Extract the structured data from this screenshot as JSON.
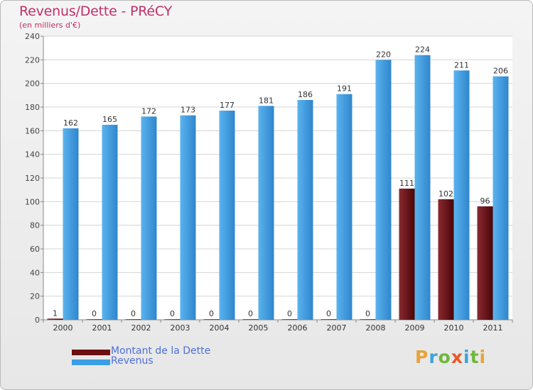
{
  "chart_data": {
    "type": "bar",
    "title": "Revenus/Dette - PRéCY",
    "subtitle": "(en milliers d'€)",
    "categories": [
      "2000",
      "2001",
      "2002",
      "2003",
      "2004",
      "2005",
      "2006",
      "2007",
      "2008",
      "2009",
      "2010",
      "2011"
    ],
    "series": [
      {
        "name": "Montant de la Dette",
        "color": "#6b0f12",
        "values": [
          1,
          0,
          0,
          0,
          0,
          0,
          0,
          0,
          0,
          111,
          102,
          96
        ]
      },
      {
        "name": "Revenus",
        "color": "#3a9ee6",
        "values": [
          162,
          165,
          172,
          173,
          177,
          181,
          186,
          191,
          220,
          224,
          211,
          206
        ]
      }
    ],
    "ylim": [
      0,
      240
    ],
    "yticks": [
      0,
      20,
      40,
      60,
      80,
      100,
      120,
      140,
      160,
      180,
      200,
      220,
      240
    ],
    "xlabel": "",
    "ylabel": "",
    "grid": true,
    "legend": "bottom-left"
  },
  "logo": {
    "letters": [
      {
        "char": "P",
        "color": "#e8a33a"
      },
      {
        "char": "r",
        "color": "#3fa3d8"
      },
      {
        "char": "o",
        "color": "#6fb83a"
      },
      {
        "char": "x",
        "color": "#e85a2a"
      },
      {
        "char": "i",
        "color": "#3fa3d8"
      },
      {
        "char": "t",
        "color": "#6fb83a"
      },
      {
        "char": "i",
        "color": "#e8a33a"
      }
    ]
  }
}
